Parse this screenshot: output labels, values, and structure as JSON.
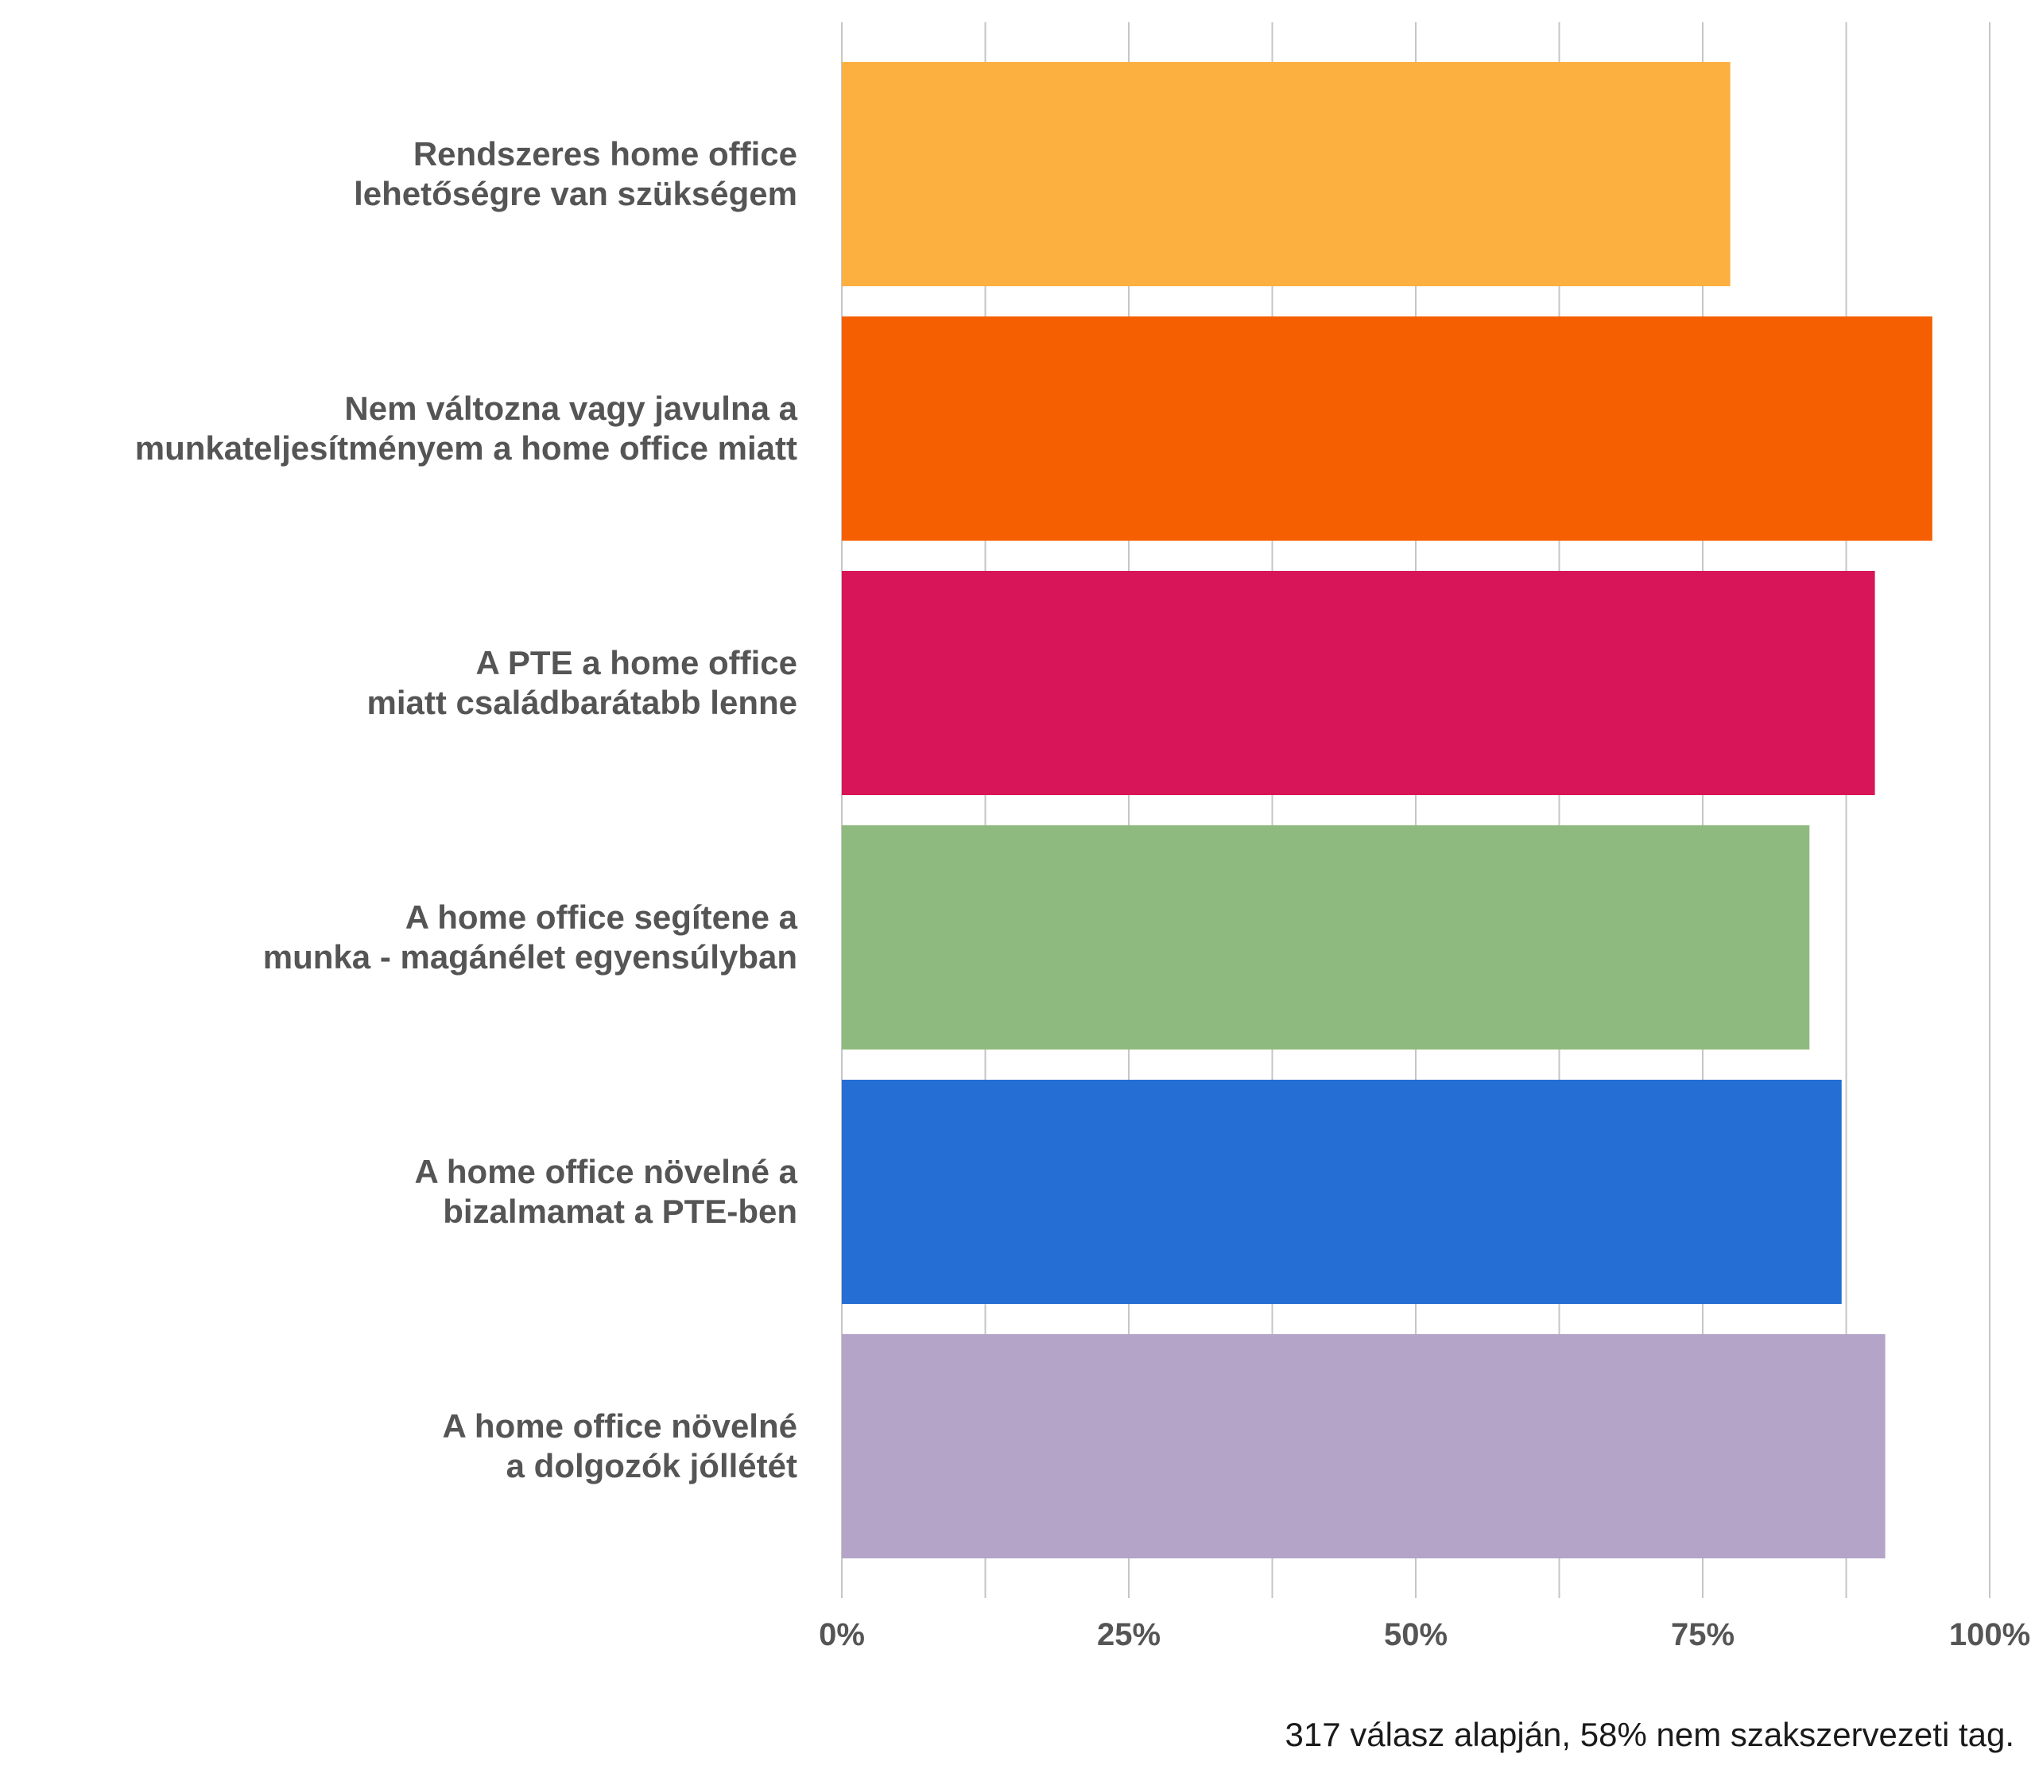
{
  "chart_data": {
    "type": "bar",
    "orientation": "horizontal",
    "categories": [
      [
        "Rendszeres home office",
        "lehetőségre van szükségem"
      ],
      [
        "Nem változna vagy javulna a",
        "munkateljesítményem a home office miatt"
      ],
      [
        "A PTE a home office",
        "miatt családbarátabb lenne"
      ],
      [
        "A home office segítene a",
        "munka - magánélet egyensúlyban"
      ],
      [
        "A home office növelné a",
        "bizalmamat a PTE-ben"
      ],
      [
        "A home office növelné",
        "a dolgozók jóllétét"
      ]
    ],
    "values": [
      77.4,
      95.0,
      90.0,
      84.3,
      87.1,
      90.9
    ],
    "colors": [
      "#FBB040",
      "#F55F02",
      "#D81558",
      "#8FBA7F",
      "#246ED4",
      "#B3A4C8"
    ],
    "xlim": [
      0,
      100
    ],
    "xticks": [
      0,
      25,
      50,
      75,
      100
    ],
    "xtick_labels": [
      "0%",
      "25%",
      "50%",
      "75%",
      "100%"
    ],
    "minor_gridlines_every": 12.5,
    "grid": true,
    "title": "",
    "xlabel": "",
    "ylabel": ""
  },
  "footnote": "317 válasz alapján, 58% nem szakszervezeti tag."
}
